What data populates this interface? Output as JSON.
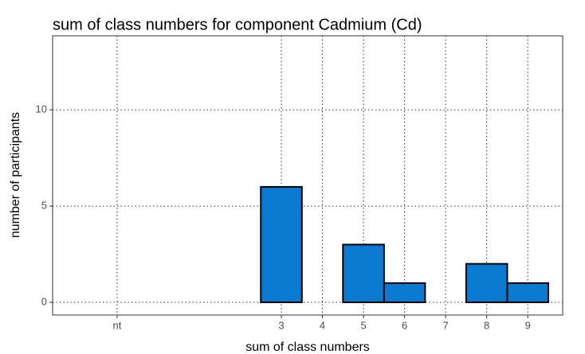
{
  "chart_data": {
    "type": "histogram",
    "title": "sum of class numbers for component Cadmium (Cd)",
    "xlabel": "sum of class numbers",
    "ylabel": "number of participants",
    "bins": [
      -1.5,
      -0.5,
      0.5,
      1.5,
      2.5,
      3.5,
      4.5,
      5.5,
      6.5,
      7.5,
      8.5,
      9.5
    ],
    "values": [
      0,
      0,
      0,
      0,
      6,
      0,
      3,
      1,
      0,
      2,
      1
    ],
    "color": "#0a7bd0",
    "xlim": [
      -2.57,
      9.85
    ],
    "xticks": [
      {
        "value": -1,
        "label": "nt"
      },
      3,
      4,
      5,
      6,
      7,
      8,
      9
    ],
    "ylim": [
      -0.66,
      13.85
    ],
    "yticks": [
      0,
      5,
      10
    ],
    "grid": true
  }
}
